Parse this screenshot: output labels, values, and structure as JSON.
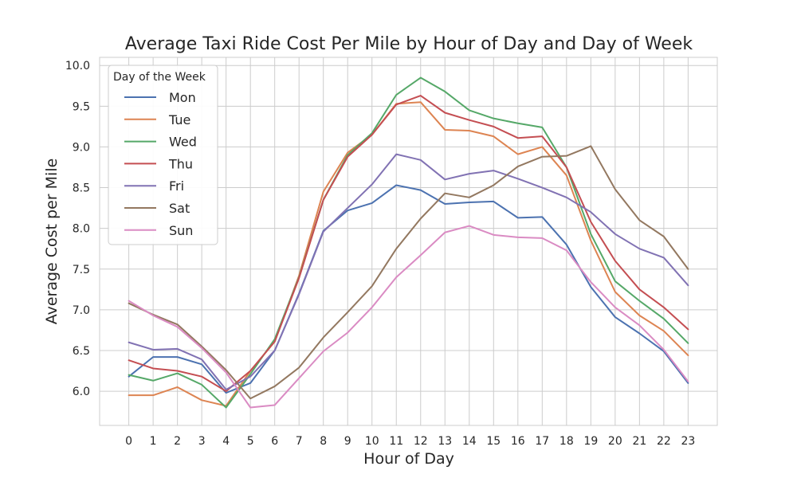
{
  "chart_data": {
    "type": "line",
    "title": "Average Taxi Ride Cost Per Mile by Hour of Day and Day of Week",
    "xlabel": "Hour of Day",
    "ylabel": "Average Cost per Mile",
    "x": [
      0,
      1,
      2,
      3,
      4,
      5,
      6,
      7,
      8,
      9,
      10,
      11,
      12,
      13,
      14,
      15,
      16,
      17,
      18,
      19,
      20,
      21,
      22,
      23
    ],
    "xlim": [
      -1.2,
      24.2
    ],
    "ylim": [
      5.58,
      10.1
    ],
    "yticks": [
      6.0,
      6.5,
      7.0,
      7.5,
      8.0,
      8.5,
      9.0,
      9.5,
      10.0
    ],
    "ytick_labels": [
      "6.0",
      "6.5",
      "7.0",
      "7.5",
      "8.0",
      "8.5",
      "9.0",
      "9.5",
      "10.0"
    ],
    "grid": true,
    "legend": {
      "title": "Day of the Week",
      "position": "top-left"
    },
    "series": [
      {
        "name": "Mon",
        "color": "#4c72b0",
        "values": [
          6.18,
          6.42,
          6.42,
          6.33,
          5.98,
          6.1,
          6.5,
          7.2,
          7.97,
          8.22,
          8.31,
          8.53,
          8.47,
          8.3,
          8.32,
          8.33,
          8.13,
          8.14,
          7.8,
          7.28,
          6.91,
          6.71,
          6.49,
          6.1
        ]
      },
      {
        "name": "Tue",
        "color": "#dd8452",
        "values": [
          5.95,
          5.95,
          6.05,
          5.89,
          5.82,
          6.25,
          6.61,
          7.42,
          8.45,
          8.93,
          9.15,
          9.53,
          9.55,
          9.21,
          9.2,
          9.13,
          8.91,
          9.0,
          8.65,
          7.85,
          7.22,
          6.93,
          6.74,
          6.44
        ]
      },
      {
        "name": "Wed",
        "color": "#55a868",
        "values": [
          6.2,
          6.13,
          6.22,
          6.08,
          5.8,
          6.21,
          6.64,
          7.4,
          8.35,
          8.9,
          9.17,
          9.64,
          9.85,
          9.68,
          9.45,
          9.35,
          9.29,
          9.24,
          8.75,
          7.93,
          7.35,
          7.11,
          6.89,
          6.59
        ]
      },
      {
        "name": "Thu",
        "color": "#c44e52",
        "values": [
          6.38,
          6.28,
          6.25,
          6.18,
          6.0,
          6.25,
          6.61,
          7.39,
          8.35,
          8.88,
          9.15,
          9.52,
          9.63,
          9.42,
          9.33,
          9.25,
          9.11,
          9.13,
          8.75,
          8.08,
          7.6,
          7.25,
          7.03,
          6.76
        ]
      },
      {
        "name": "Fri",
        "color": "#8172b3",
        "values": [
          6.6,
          6.51,
          6.52,
          6.39,
          6.02,
          6.18,
          6.5,
          7.19,
          7.96,
          8.25,
          8.54,
          8.91,
          8.84,
          8.6,
          8.67,
          8.71,
          8.61,
          8.5,
          8.38,
          8.2,
          7.93,
          7.75,
          7.64,
          7.3
        ]
      },
      {
        "name": "Sat",
        "color": "#937860",
        "values": [
          7.08,
          6.94,
          6.82,
          6.55,
          6.26,
          5.91,
          6.06,
          6.29,
          6.66,
          6.97,
          7.29,
          7.75,
          8.12,
          8.43,
          8.38,
          8.53,
          8.76,
          8.88,
          8.89,
          9.01,
          8.48,
          8.1,
          7.9,
          7.5
        ]
      },
      {
        "name": "Sun",
        "color": "#da8bc3",
        "values": [
          7.11,
          6.93,
          6.79,
          6.53,
          6.23,
          5.8,
          5.83,
          6.16,
          6.49,
          6.72,
          7.03,
          7.4,
          7.67,
          7.95,
          8.03,
          7.92,
          7.89,
          7.88,
          7.73,
          7.34,
          7.03,
          6.81,
          6.51,
          6.12
        ]
      }
    ]
  }
}
